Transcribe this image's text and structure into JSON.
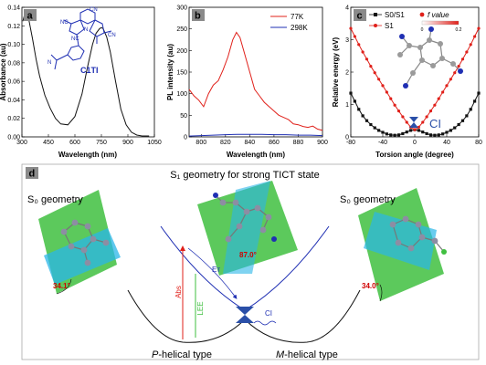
{
  "colors": {
    "red": "#e0201a",
    "blue": "#1f2fb3",
    "black": "#111111",
    "green_plane": "#3fbf3f",
    "cyan_plane": "#29b6e8",
    "ci": "#2a4fa8",
    "label_bg": "#8a8a8a"
  },
  "chart_data": [
    {
      "id": "a",
      "panel_label": "a",
      "type": "line",
      "xlabel": "Wavelength (nm)",
      "ylabel": "Absorbance (au)",
      "xlim": [
        300,
        1050
      ],
      "ylim": [
        0,
        0.14
      ],
      "xticks": [
        300,
        450,
        600,
        750,
        900,
        1050
      ],
      "yticks": [
        0.0,
        0.02,
        0.04,
        0.06,
        0.08,
        0.1,
        0.12,
        0.14
      ],
      "molecule_name": "C1TI",
      "molecule_atom_labels": [
        "NC",
        "CN",
        "NC",
        "CN",
        "N",
        "N"
      ],
      "series": [
        {
          "color": "#111111",
          "x": [
            305,
            320,
            340,
            360,
            380,
            400,
            430,
            460,
            490,
            520,
            560,
            600,
            640,
            670,
            700,
            720,
            740,
            750,
            760,
            780,
            800,
            830,
            860,
            890,
            920,
            950,
            980,
            1000,
            1020
          ],
          "y": [
            0.125,
            0.136,
            0.126,
            0.106,
            0.084,
            0.066,
            0.045,
            0.031,
            0.02,
            0.014,
            0.013,
            0.022,
            0.046,
            0.074,
            0.1,
            0.112,
            0.117,
            0.118,
            0.117,
            0.108,
            0.092,
            0.06,
            0.03,
            0.013,
            0.005,
            0.002,
            0.001,
            0.001,
            0.001
          ]
        }
      ]
    },
    {
      "id": "b",
      "panel_label": "b",
      "type": "line",
      "xlabel": "Wavelength (nm)",
      "ylabel": "PL intensity (au)",
      "xlim": [
        790,
        900
      ],
      "ylim": [
        0,
        300
      ],
      "xticks": [
        800,
        820,
        840,
        860,
        880,
        900
      ],
      "yticks": [
        0,
        50,
        100,
        150,
        200,
        250,
        300
      ],
      "legend_position": "top-right",
      "series": [
        {
          "name": "77K",
          "color": "#e0201a",
          "x": [
            790,
            794,
            798,
            802,
            806,
            810,
            814,
            818,
            822,
            826,
            829,
            832,
            836,
            840,
            844,
            848,
            852,
            856,
            860,
            864,
            868,
            872,
            876,
            880,
            884,
            888,
            892,
            896,
            900
          ],
          "y": [
            110,
            95,
            85,
            70,
            100,
            120,
            130,
            155,
            185,
            225,
            242,
            230,
            190,
            150,
            110,
            95,
            80,
            70,
            60,
            50,
            45,
            40,
            30,
            28,
            24,
            22,
            25,
            18,
            15
          ]
        },
        {
          "name": "298K",
          "color": "#1f2fb3",
          "x": [
            790,
            800,
            810,
            820,
            830,
            840,
            850,
            860,
            870,
            880,
            890,
            900
          ],
          "y": [
            2,
            3,
            4,
            5,
            6,
            6,
            6,
            5,
            5,
            4,
            4,
            3
          ]
        }
      ]
    },
    {
      "id": "c",
      "panel_label": "c",
      "type": "line",
      "xlabel": "Torsion angle (degree)",
      "ylabel": "Relative energy (eV)",
      "xlim": [
        -80,
        80
      ],
      "ylim": [
        0,
        4
      ],
      "xticks": [
        -80,
        -40,
        0,
        40,
        80
      ],
      "yticks": [
        0,
        1,
        2,
        3,
        4
      ],
      "legend_position": "top-left",
      "colorbar_label": "f value",
      "colorbar_ticks": [
        "0",
        "0.2"
      ],
      "annotation": "CI",
      "series": [
        {
          "name": "S0/S1",
          "color": "#111111",
          "marker": "square",
          "x": [
            -80,
            -75,
            -70,
            -65,
            -60,
            -55,
            -50,
            -45,
            -40,
            -35,
            -30,
            -25,
            -20,
            -15,
            -10,
            -5,
            0,
            5,
            10,
            15,
            20,
            25,
            30,
            35,
            40,
            45,
            50,
            55,
            60,
            65,
            70,
            75,
            80
          ],
          "y": [
            1.35,
            1.1,
            0.85,
            0.65,
            0.5,
            0.38,
            0.28,
            0.2,
            0.14,
            0.09,
            0.06,
            0.05,
            0.06,
            0.1,
            0.15,
            0.2,
            0.22,
            0.2,
            0.15,
            0.1,
            0.06,
            0.05,
            0.06,
            0.09,
            0.14,
            0.2,
            0.28,
            0.38,
            0.5,
            0.65,
            0.85,
            1.1,
            1.35
          ]
        },
        {
          "name": "S1",
          "color": "#e0201a",
          "marker": "circle",
          "x": [
            -80,
            -75,
            -70,
            -65,
            -60,
            -55,
            -50,
            -45,
            -40,
            -35,
            -30,
            -25,
            -20,
            -15,
            -10,
            -5,
            0,
            5,
            10,
            15,
            20,
            25,
            30,
            35,
            40,
            45,
            50,
            55,
            60,
            65,
            70,
            75,
            80
          ],
          "y": [
            3.35,
            3.1,
            2.85,
            2.62,
            2.4,
            2.18,
            1.98,
            1.78,
            1.58,
            1.38,
            1.18,
            0.98,
            0.8,
            0.62,
            0.45,
            0.3,
            0.22,
            0.3,
            0.45,
            0.62,
            0.8,
            0.98,
            1.18,
            1.38,
            1.58,
            1.78,
            1.98,
            2.18,
            2.4,
            2.62,
            2.85,
            3.1,
            3.35
          ]
        }
      ]
    }
  ],
  "diagram_d": {
    "panel_label": "d",
    "title": "S₁ geometry for strong TICT state",
    "s0_left_title": "S₀ geometry",
    "s0_right_title": "S₀ geometry",
    "angle_left": "34.1°",
    "angle_center": "87.0°",
    "angle_right": "34.0°",
    "label_abs": "Abs",
    "label_lee": "LEE",
    "label_et": "Eт",
    "label_ci": "CI",
    "caption_left_italic": "P",
    "caption_left_rest": "-helical type",
    "caption_right_italic": "M",
    "caption_right_rest": "-helical type"
  }
}
